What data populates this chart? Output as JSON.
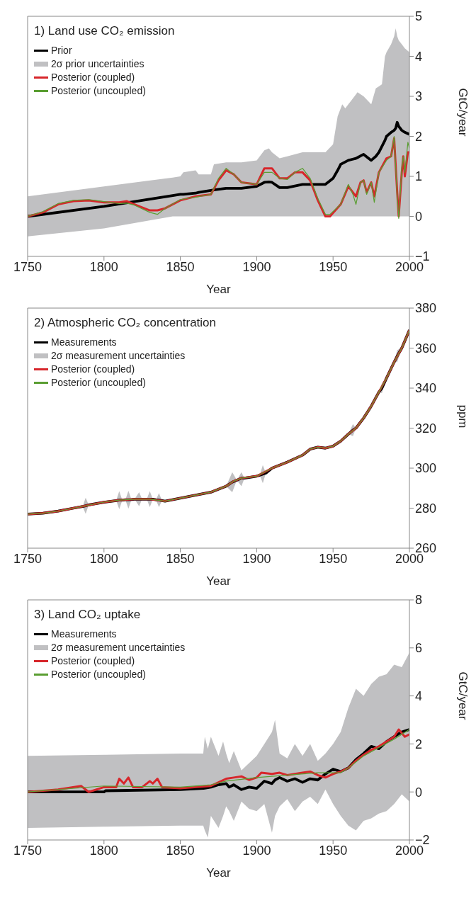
{
  "chart_data": [
    {
      "type": "line",
      "title": "1) Land use CO₂ emission",
      "annotations": [
        "2σ prior uncertainties"
      ],
      "xlabel": "Year",
      "ylabel": "GtC/year",
      "xlim": [
        1750,
        2000
      ],
      "xticks": [
        1750,
        1800,
        1850,
        1900,
        1950,
        2000
      ],
      "ylim": [
        -1,
        5
      ],
      "yticks": [
        -1,
        0,
        1,
        2,
        3,
        4,
        5
      ],
      "legend": "top left",
      "series": [
        {
          "name": "Prior",
          "color": "#000000",
          "x": [
            1750,
            1800,
            1845,
            1850,
            1852,
            1860,
            1862,
            1870,
            1872,
            1880,
            1890,
            1900,
            1905,
            1908,
            1910,
            1915,
            1920,
            1930,
            1945,
            1950,
            1953,
            1955,
            1956,
            1958,
            1960,
            1962,
            1965,
            1966,
            1970,
            1975,
            1978,
            1980,
            1982,
            1984,
            1985,
            1988,
            1990,
            1991,
            1992,
            1993,
            1995,
            1997,
            2000
          ],
          "values": [
            0,
            0.25,
            0.52,
            0.55,
            0.55,
            0.58,
            0.6,
            0.65,
            0.66,
            0.7,
            0.7,
            0.75,
            0.85,
            0.86,
            0.85,
            0.72,
            0.72,
            0.8,
            0.8,
            0.95,
            1.15,
            1.3,
            1.32,
            1.36,
            1.4,
            1.42,
            1.45,
            1.47,
            1.55,
            1.4,
            1.5,
            1.6,
            1.75,
            1.9,
            2.0,
            2.1,
            2.15,
            2.2,
            2.35,
            2.25,
            2.15,
            2.1,
            2.05
          ],
          "lower": [
            -0.5,
            -0.3,
            0,
            0,
            0,
            0,
            0,
            0,
            0,
            0,
            0,
            0,
            0,
            0,
            0,
            0,
            0,
            0,
            0,
            0,
            0,
            0,
            0,
            0,
            0,
            0,
            0,
            0,
            0,
            0,
            0,
            0,
            0,
            0,
            0,
            0,
            0,
            0,
            0,
            0,
            0,
            0,
            0
          ],
          "upper": [
            0.5,
            0.75,
            0.97,
            1.0,
            1.1,
            1.15,
            1.05,
            1.05,
            1.3,
            1.35,
            1.35,
            1.4,
            1.65,
            1.7,
            1.6,
            1.45,
            1.5,
            1.6,
            1.6,
            1.8,
            2.5,
            2.7,
            2.8,
            2.7,
            2.8,
            2.9,
            3.05,
            3.1,
            3.0,
            2.8,
            3.2,
            3.25,
            3.3,
            4.0,
            4.1,
            4.3,
            4.5,
            4.7,
            4.5,
            4.4,
            4.3,
            4.2,
            4.1
          ]
        },
        {
          "name": "Posterior (coupled)",
          "color": "#d7262b",
          "x": [
            1750,
            1760,
            1770,
            1780,
            1790,
            1800,
            1810,
            1815,
            1820,
            1830,
            1835,
            1840,
            1850,
            1860,
            1870,
            1875,
            1880,
            1885,
            1890,
            1900,
            1905,
            1910,
            1915,
            1920,
            1925,
            1930,
            1935,
            1940,
            1945,
            1948,
            1955,
            1960,
            1963,
            1965,
            1968,
            1970,
            1972,
            1975,
            1977,
            1980,
            1985,
            1988,
            1990,
            1992,
            1993,
            1995,
            1996,
            1997,
            1999,
            2000
          ],
          "values": [
            0,
            0.1,
            0.3,
            0.38,
            0.4,
            0.35,
            0.35,
            0.38,
            0.3,
            0.15,
            0.15,
            0.2,
            0.4,
            0.5,
            0.55,
            0.9,
            1.15,
            1.05,
            0.85,
            0.8,
            1.2,
            1.2,
            0.95,
            0.95,
            1.1,
            1.1,
            0.9,
            0.4,
            0,
            0,
            0.3,
            0.75,
            0.6,
            0.5,
            0.85,
            0.9,
            0.6,
            0.85,
            0.5,
            1.1,
            1.45,
            1.5,
            1.95,
            0.6,
            0,
            1.1,
            1.5,
            1.0,
            1.6,
            1.6
          ]
        },
        {
          "name": "Posterior (uncoupled)",
          "color": "#5a9e32",
          "x": [
            1750,
            1760,
            1770,
            1780,
            1790,
            1800,
            1810,
            1815,
            1820,
            1830,
            1835,
            1840,
            1850,
            1860,
            1870,
            1875,
            1880,
            1885,
            1890,
            1900,
            1905,
            1910,
            1915,
            1920,
            1925,
            1930,
            1935,
            1940,
            1945,
            1948,
            1955,
            1960,
            1963,
            1965,
            1968,
            1970,
            1972,
            1975,
            1977,
            1980,
            1985,
            1988,
            1990,
            1992,
            1993,
            1995,
            1996,
            1997,
            1999,
            2000
          ],
          "values": [
            0,
            0.12,
            0.32,
            0.4,
            0.42,
            0.37,
            0.32,
            0.33,
            0.28,
            0.1,
            0.05,
            0.2,
            0.42,
            0.48,
            0.55,
            0.95,
            1.2,
            1.05,
            0.85,
            0.8,
            1.1,
            1.1,
            0.95,
            0.92,
            1.1,
            1.2,
            0.95,
            0.45,
            0.05,
            0.05,
            0.3,
            0.8,
            0.55,
            0.3,
            0.85,
            0.9,
            0.55,
            0.85,
            0.35,
            1.1,
            1.4,
            1.5,
            2.0,
            0.5,
            -0.05,
            1.2,
            1.5,
            1.1,
            1.85,
            1.7
          ]
        }
      ]
    },
    {
      "type": "line",
      "title": "2) Atmospheric CO₂ concentration",
      "annotations": [
        "2σ measurement uncertainties"
      ],
      "xlabel": "Year",
      "ylabel": "ppm",
      "xlim": [
        1750,
        2000
      ],
      "xticks": [
        1750,
        1800,
        1850,
        1900,
        1950,
        2000
      ],
      "ylim": [
        260,
        380
      ],
      "yticks": [
        260,
        280,
        300,
        320,
        340,
        360,
        380
      ],
      "legend": "top left",
      "series": [
        {
          "name": "Measurements",
          "color": "#000000",
          "x": [
            1750,
            1760,
            1770,
            1780,
            1786,
            1788,
            1790,
            1800,
            1808,
            1810,
            1812,
            1814,
            1816,
            1818,
            1820,
            1823,
            1825,
            1828,
            1830,
            1832,
            1834,
            1836,
            1838,
            1840,
            1850,
            1860,
            1870,
            1880,
            1884,
            1887,
            1890,
            1892,
            1900,
            1902,
            1904,
            1906,
            1910,
            1920,
            1930,
            1935,
            1940,
            1945,
            1950,
            1955,
            1960,
            1963,
            1965,
            1970,
            1975,
            1980,
            1982,
            1985,
            1990,
            1992,
            1995,
            2000
          ],
          "values": [
            277,
            277.5,
            278.5,
            280,
            280.8,
            281.2,
            281.6,
            283,
            283.8,
            284,
            284,
            284.2,
            284.2,
            284.3,
            284.5,
            284.5,
            284.5,
            284.5,
            284.5,
            284.5,
            284.2,
            284,
            283.8,
            283.5,
            285,
            286.5,
            288,
            291,
            293,
            294,
            295,
            295,
            296,
            296.5,
            297,
            297.5,
            300,
            303,
            306.5,
            309.5,
            310.5,
            310,
            311,
            313.5,
            317,
            319,
            320,
            325,
            331,
            338,
            340,
            345,
            353,
            356,
            360,
            369
          ],
          "lower": [
            277,
            277.5,
            278.5,
            280,
            280.8,
            277.2,
            281.6,
            283,
            283.8,
            279.5,
            284,
            284.2,
            279.7,
            284.3,
            284.5,
            281,
            284.5,
            284.5,
            280.5,
            284.5,
            284.2,
            280.5,
            283.8,
            283.5,
            285,
            286.5,
            288,
            291,
            288,
            294,
            291,
            295,
            296,
            296.5,
            292.5,
            297.5,
            300,
            303,
            306.5,
            309.5,
            310.5,
            310,
            311,
            313.5,
            317,
            316,
            320,
            325,
            331,
            338,
            337.5,
            345,
            353,
            353,
            360,
            369
          ],
          "upper": [
            277,
            277.5,
            278.5,
            280,
            280.8,
            285.2,
            281.6,
            283,
            283.8,
            288.5,
            284,
            284.2,
            288.7,
            284.3,
            284.5,
            288,
            284.5,
            284.5,
            288.5,
            284.5,
            284.2,
            287.5,
            283.8,
            283.5,
            285,
            286.5,
            288,
            291,
            298,
            294,
            298,
            295,
            296,
            296.5,
            301.5,
            297.5,
            300,
            303,
            306.5,
            309.5,
            310.5,
            310,
            311,
            313.5,
            317,
            322,
            320,
            325,
            331,
            338,
            342.5,
            345,
            353,
            359,
            360,
            369
          ]
        },
        {
          "name": "Posterior (coupled)",
          "color": "#d7262b",
          "x": [
            1750,
            1760,
            1770,
            1780,
            1790,
            1800,
            1810,
            1820,
            1830,
            1840,
            1850,
            1860,
            1870,
            1880,
            1885,
            1890,
            1900,
            1910,
            1920,
            1930,
            1935,
            1940,
            1945,
            1950,
            1955,
            1960,
            1965,
            1970,
            1975,
            1980,
            1985,
            1990,
            1995,
            2000
          ],
          "values": [
            277,
            277.5,
            278.5,
            280,
            281.5,
            283,
            284,
            284.5,
            284.5,
            283.5,
            285,
            286.5,
            288,
            291,
            293.5,
            295,
            296,
            300,
            303,
            306.5,
            309.5,
            310.5,
            310,
            311,
            313.5,
            317,
            320,
            325,
            331,
            338,
            345,
            353,
            360,
            369
          ]
        },
        {
          "name": "Posterior (uncoupled)",
          "color": "#5a9e32",
          "x": [
            1750,
            1760,
            1770,
            1780,
            1790,
            1800,
            1810,
            1820,
            1830,
            1840,
            1850,
            1860,
            1870,
            1880,
            1885,
            1890,
            1900,
            1910,
            1920,
            1930,
            1935,
            1940,
            1945,
            1950,
            1955,
            1960,
            1965,
            1970,
            1975,
            1980,
            1985,
            1990,
            1995,
            2000
          ],
          "values": [
            277,
            277.5,
            278.5,
            280,
            281.5,
            283,
            284,
            284.5,
            284.5,
            283.5,
            285,
            286.5,
            288,
            291,
            293.5,
            295,
            296,
            300,
            303,
            306.5,
            309.5,
            310.5,
            310,
            311,
            313.5,
            317,
            320,
            325,
            331,
            338,
            345,
            353,
            360,
            369
          ]
        }
      ]
    },
    {
      "type": "line",
      "title": "3) Land CO₂ uptake",
      "annotations": [
        "2σ measurement uncertainties"
      ],
      "xlabel": "Year",
      "ylabel": "GtC/year",
      "xlim": [
        1750,
        2000
      ],
      "xticks": [
        1750,
        1800,
        1850,
        1900,
        1950,
        2000
      ],
      "ylim": [
        -2,
        8
      ],
      "yticks": [
        -2,
        0,
        2,
        4,
        6,
        8
      ],
      "legend": "top left",
      "series": [
        {
          "name": "Measurements",
          "color": "#000000",
          "x": [
            1750,
            1800,
            1801,
            1850,
            1865,
            1866,
            1868,
            1870,
            1875,
            1878,
            1880,
            1882,
            1885,
            1890,
            1895,
            1900,
            1905,
            1910,
            1912,
            1915,
            1920,
            1925,
            1930,
            1935,
            1940,
            1945,
            1950,
            1955,
            1960,
            1965,
            1970,
            1975,
            1980,
            1985,
            1990,
            1995,
            2000
          ],
          "values": [
            0,
            0,
            0.05,
            0.1,
            0.15,
            0.16,
            0.18,
            0.2,
            0.3,
            0.33,
            0.35,
            0.2,
            0.3,
            0.1,
            0.2,
            0.15,
            0.45,
            0.35,
            0.5,
            0.6,
            0.45,
            0.55,
            0.4,
            0.55,
            0.5,
            0.75,
            0.95,
            0.85,
            1.0,
            1.35,
            1.6,
            1.9,
            1.8,
            2.1,
            2.3,
            2.5,
            2.6
          ],
          "lower": [
            -1.5,
            -1.45,
            -1.45,
            -1.4,
            -1.4,
            -1.6,
            -1.9,
            -1.0,
            -1.5,
            -1.0,
            -0.6,
            -0.8,
            -1.2,
            -0.4,
            -0.7,
            -0.8,
            -0.5,
            -1.7,
            -1.0,
            -0.6,
            -0.3,
            -0.8,
            -0.4,
            -0.2,
            -0.5,
            0.1,
            -0.5,
            -1.0,
            -1.4,
            -1.6,
            -1.2,
            -1.1,
            -0.9,
            -0.8,
            -0.5,
            -0.1,
            -0.4
          ],
          "upper": [
            1.5,
            1.55,
            1.55,
            1.6,
            1.6,
            2.3,
            1.8,
            2.3,
            1.5,
            2.1,
            1.6,
            1.2,
            1.7,
            0.9,
            1.2,
            1.5,
            2.0,
            2.5,
            3.0,
            1.6,
            1.4,
            2.0,
            1.5,
            2.0,
            1.3,
            1.6,
            2.0,
            2.5,
            3.5,
            4.3,
            4.0,
            4.5,
            4.8,
            4.9,
            5.3,
            5.2,
            5.8
          ]
        },
        {
          "name": "Posterior (coupled)",
          "color": "#d7262b",
          "x": [
            1750,
            1770,
            1785,
            1790,
            1800,
            1808,
            1810,
            1813,
            1816,
            1819,
            1825,
            1828,
            1830,
            1832,
            1835,
            1838,
            1850,
            1870,
            1880,
            1885,
            1890,
            1895,
            1900,
            1903,
            1910,
            1915,
            1920,
            1925,
            1930,
            1935,
            1940,
            1945,
            1950,
            1955,
            1960,
            1965,
            1970,
            1975,
            1980,
            1985,
            1990,
            1993,
            1997,
            2000
          ],
          "values": [
            0,
            0.1,
            0.25,
            0,
            0.2,
            0.2,
            0.55,
            0.35,
            0.6,
            0.2,
            0.2,
            0.35,
            0.45,
            0.35,
            0.55,
            0.2,
            0.15,
            0.25,
            0.55,
            0.6,
            0.65,
            0.5,
            0.6,
            0.8,
            0.75,
            0.8,
            0.7,
            0.75,
            0.8,
            0.85,
            0.7,
            0.6,
            0.75,
            0.85,
            1.0,
            1.3,
            1.55,
            1.75,
            1.9,
            2.1,
            2.3,
            2.6,
            2.3,
            2.4
          ]
        },
        {
          "name": "Posterior (uncoupled)",
          "color": "#5a9e32",
          "x": [
            1750,
            1800,
            1850,
            1870,
            1880,
            1900,
            1920,
            1940,
            1950,
            1955,
            1960,
            1970,
            1980,
            1990,
            2000
          ],
          "values": [
            0,
            0.25,
            0.2,
            0.3,
            0.45,
            0.6,
            0.7,
            0.8,
            0.8,
            0.8,
            1.0,
            1.5,
            1.85,
            2.2,
            2.6
          ]
        }
      ]
    }
  ]
}
